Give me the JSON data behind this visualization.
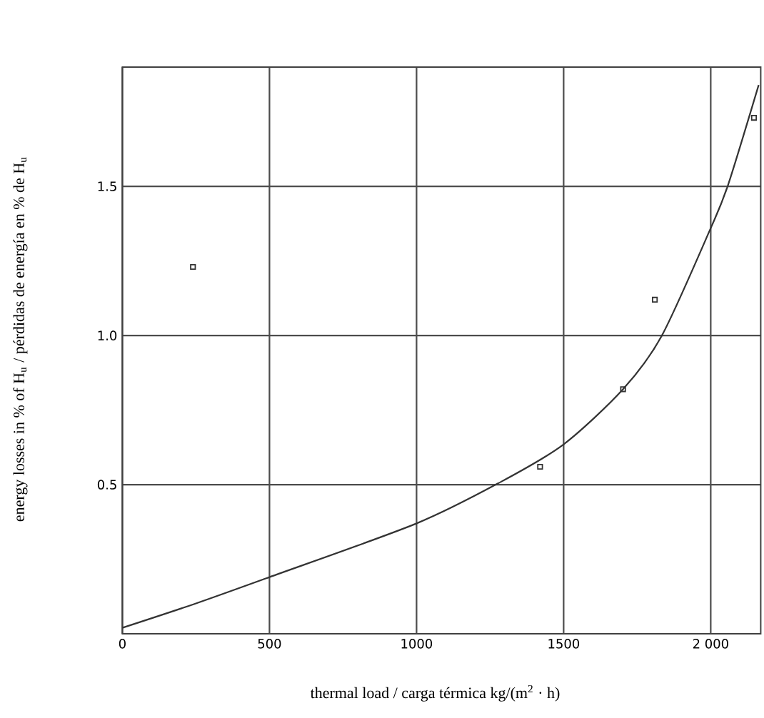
{
  "chart_data": {
    "type": "scatter",
    "xlabel": "thermal load  /  carga térmica     kg/(m$^{2}$ · h)",
    "ylabel": "energy losses in % of H$_{u}$  /  pérdidas de energía en % de H$_{u}$",
    "xlim": [
      0,
      2170
    ],
    "ylim": [
      0,
      1.9
    ],
    "xticks": [
      0,
      500,
      1000,
      1500,
      {
        "value": 2000,
        "label": "2 000"
      }
    ],
    "yticks": [
      0.5,
      {
        "value": 1.0,
        "label": "1.0"
      },
      1.5
    ],
    "grid": true,
    "series": [
      {
        "color": "#333333",
        "marker": "square",
        "x": [
          240,
          1420,
          1702,
          1810,
          2147
        ],
        "values": [
          1.23,
          0.56,
          0.82,
          1.12,
          1.73
        ]
      },
      {
        "type": "line",
        "color": "#333333",
        "line_style": "solid",
        "marker": "none",
        "x": [
          0,
          245,
          500,
          1000,
          1288,
          1500,
          1702,
          1834,
          2000,
          2059,
          2163
        ],
        "values": [
          0.02,
          0.1,
          0.19,
          0.37,
          0.51,
          0.635,
          0.82,
          1.0,
          1.36,
          1.505,
          1.84
        ]
      }
    ]
  }
}
